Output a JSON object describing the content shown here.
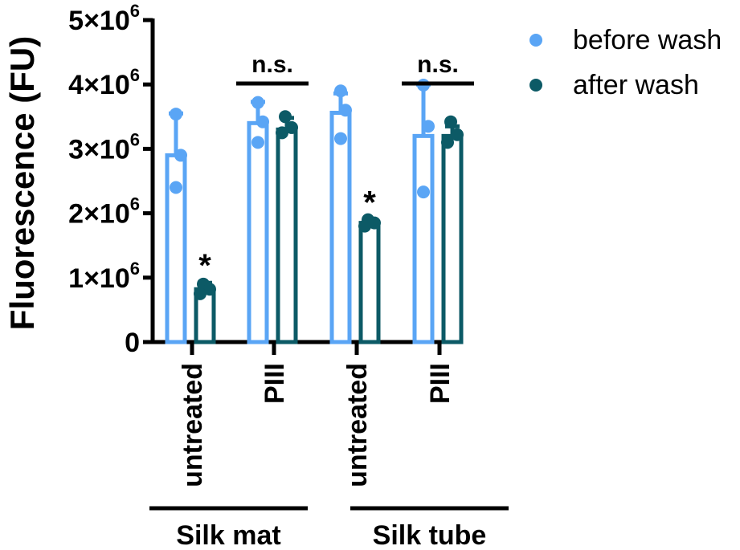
{
  "colors": {
    "before": "#5aa5f5",
    "after": "#0c5a66",
    "axis": "#000000"
  },
  "chart_data": {
    "type": "bar",
    "ylabel": "Fluorescence (FU)",
    "ylim": [
      0,
      5000000
    ],
    "yticks": [
      {
        "value": 0,
        "base": "0",
        "exp": ""
      },
      {
        "value": 1000000,
        "base": "1×10",
        "exp": "6"
      },
      {
        "value": 2000000,
        "base": "2×10",
        "exp": "6"
      },
      {
        "value": 3000000,
        "base": "3×10",
        "exp": "6"
      },
      {
        "value": 4000000,
        "base": "4×10",
        "exp": "6"
      },
      {
        "value": 5000000,
        "base": "5×10",
        "exp": "6"
      }
    ],
    "legend_position": "top-right",
    "series": [
      {
        "key": "before",
        "name": "before wash"
      },
      {
        "key": "after",
        "name": "after wash"
      }
    ],
    "groups": [
      {
        "label": "Silk mat",
        "conditions": [
          {
            "label": "untreated",
            "before": {
              "mean": 2900000,
              "sd": 650000,
              "points": [
                3540000,
                2900000,
                2400000
              ]
            },
            "after": {
              "mean": 820000,
              "sd": 100000,
              "points": [
                900000,
                820000,
                750000
              ]
            },
            "annotation": "*"
          },
          {
            "label": "PIII",
            "before": {
              "mean": 3400000,
              "sd": 330000,
              "points": [
                3720000,
                3420000,
                3100000
              ]
            },
            "after": {
              "mean": 3300000,
              "sd": 180000,
              "points": [
                3500000,
                3330000,
                3250000
              ]
            },
            "annotation": "n.s."
          }
        ]
      },
      {
        "label": "Silk tube",
        "conditions": [
          {
            "label": "untreated",
            "before": {
              "mean": 3560000,
              "sd": 300000,
              "points": [
                3900000,
                3600000,
                3160000
              ]
            },
            "after": {
              "mean": 1850000,
              "sd": 50000,
              "points": [
                1900000,
                1850000,
                1800000
              ]
            },
            "annotation": "*"
          },
          {
            "label": "PIII",
            "before": {
              "mean": 3200000,
              "sd": 800000,
              "points": [
                3990000,
                3350000,
                2330000
              ]
            },
            "after": {
              "mean": 3200000,
              "sd": 150000,
              "points": [
                3420000,
                3220000,
                3100000
              ]
            },
            "annotation": "n.s."
          }
        ]
      }
    ]
  }
}
